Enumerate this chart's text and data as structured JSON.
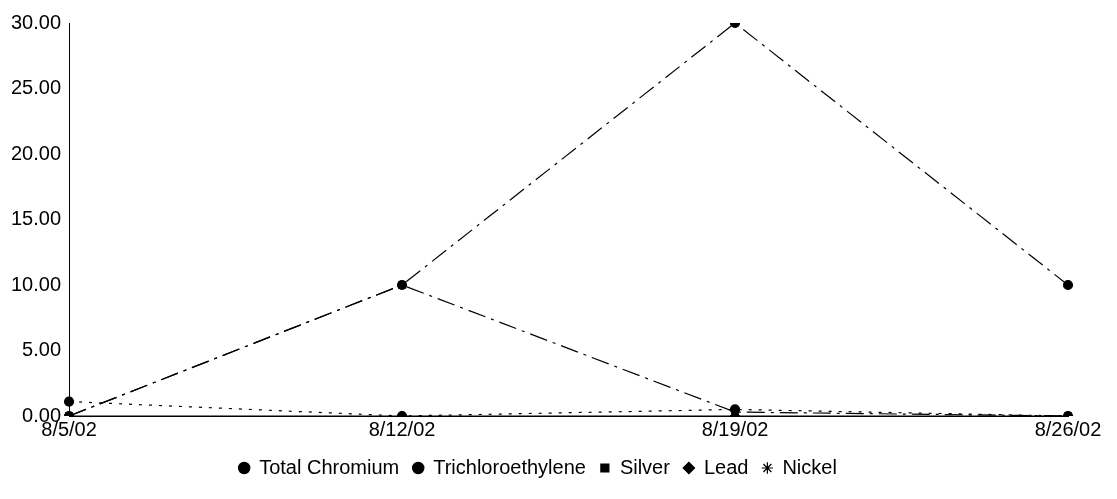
{
  "chart_data": {
    "type": "line",
    "categories": [
      "8/5/02",
      "8/12/02",
      "8/19/02",
      "8/26/02"
    ],
    "series": [
      {
        "name": "Total Chromium",
        "color": "#000000",
        "values": [
          0,
          10,
          30,
          10
        ],
        "marker": "circle",
        "line_style": "dashed"
      },
      {
        "name": "Trichloroethylene",
        "color": "#000000",
        "values": [
          1.1,
          0,
          0.5,
          0
        ],
        "marker": "circle",
        "line_style": "dotted"
      },
      {
        "name": "Silver",
        "color": "#000000",
        "values": [
          0,
          10,
          0.3,
          0
        ],
        "marker": "square",
        "line_style": "dashed"
      },
      {
        "name": "Lead",
        "color": "#000000",
        "values": [
          0,
          0,
          0,
          0
        ],
        "marker": "diamond",
        "line_style": "solid"
      },
      {
        "name": "Nickel",
        "color": "#000000",
        "values": [
          null,
          null,
          null,
          null
        ],
        "marker": "star",
        "line_style": "solid"
      }
    ],
    "ylim": [
      0,
      30
    ],
    "yticks": [
      {
        "value": 0,
        "label": "0.00"
      },
      {
        "value": 5,
        "label": "5.00"
      },
      {
        "value": 10,
        "label": "10.00"
      },
      {
        "value": 15,
        "label": "15.00"
      },
      {
        "value": 20,
        "label": "20.00"
      },
      {
        "value": 25,
        "label": "25.00"
      },
      {
        "value": 30,
        "label": "30.00"
      }
    ],
    "grid": false,
    "legend": "bottom"
  }
}
